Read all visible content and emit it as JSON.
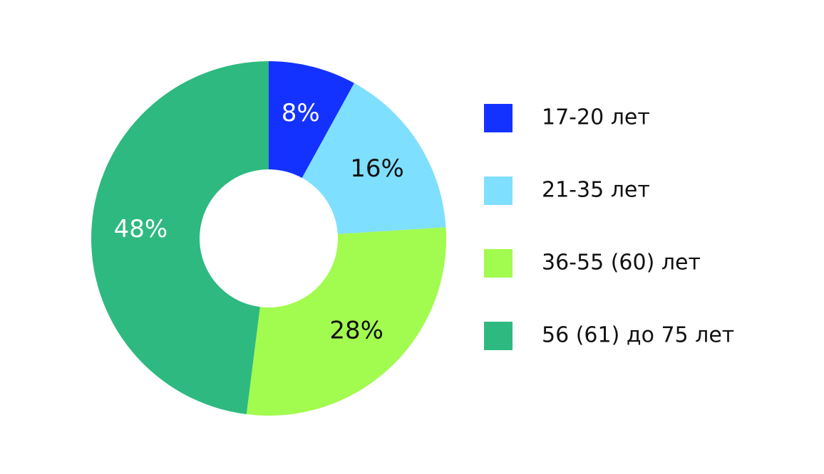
{
  "chart_data": {
    "type": "donut",
    "categories": [
      "17-20 лет",
      "21-35 лет",
      "36-55 (60) лет",
      "56 (61) до 75 лет"
    ],
    "values": [
      8,
      16,
      28,
      48
    ],
    "value_labels": [
      "8%",
      "16%",
      "28%",
      "48%"
    ],
    "colors": [
      "#1432ff",
      "#7fdfff",
      "#a2fb4f",
      "#2eb981"
    ],
    "legend": "right"
  }
}
